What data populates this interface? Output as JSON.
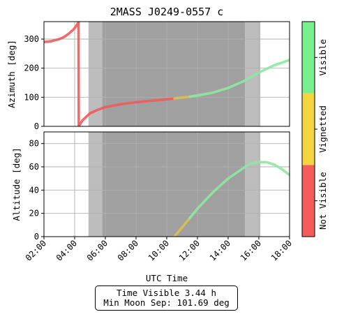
{
  "chart_data": {
    "type": "line",
    "title": "2MASS J0249-0557 c",
    "xlabel": "UTC Time",
    "x_ticks": [
      "02:00",
      "04:00",
      "06:00",
      "08:00",
      "10:00",
      "12:00",
      "14:00",
      "16:00",
      "18:00"
    ],
    "xlim_hours": [
      2,
      18
    ],
    "twilight_bands_hours": {
      "light": [
        [
          4.9,
          5.8
        ],
        [
          15.1,
          16.1
        ]
      ],
      "dark": [
        [
          5.8,
          15.1
        ]
      ]
    },
    "panels": [
      {
        "name": "azimuth",
        "ylabel": "Azimuth [deg]",
        "ylim": [
          0,
          360
        ],
        "y_ticks": [
          0,
          100,
          200,
          300
        ],
        "series": [
          {
            "status": "Not Visible",
            "color": "#ef5b5b",
            "x": [
              2.0,
              2.5,
              3.0,
              3.3,
              3.6,
              3.9,
              4.1,
              4.25
            ],
            "y": [
              290,
              293,
              300,
              307,
              318,
              332,
              345,
              358
            ]
          },
          {
            "status": "Not Visible",
            "color": "#ef5b5b",
            "x": [
              4.25,
              4.27
            ],
            "y": [
              358,
              0
            ]
          },
          {
            "status": "Not Visible",
            "color": "#ef5b5b",
            "x": [
              4.27,
              4.5,
              5.0,
              5.5,
              6.0,
              7.0,
              8.0,
              9.0,
              10.0,
              10.5
            ],
            "y": [
              0,
              20,
              45,
              57,
              66,
              76,
              83,
              88,
              93,
              96
            ]
          },
          {
            "status": "Vignetted",
            "color": "#d8c24a",
            "x": [
              10.5,
              11.0,
              11.5
            ],
            "y": [
              96,
              99,
              102
            ]
          },
          {
            "status": "Visible",
            "color": "#8ee8a0",
            "x": [
              11.5,
              12.0,
              13.0,
              14.0,
              15.0,
              16.0,
              17.0,
              18.0
            ],
            "y": [
              102,
              106,
              116,
              132,
              155,
              185,
              210,
              228
            ]
          }
        ]
      },
      {
        "name": "altitude",
        "ylabel": "Altitude [deg]",
        "ylim": [
          0,
          90
        ],
        "y_ticks": [
          0,
          20,
          40,
          60,
          80
        ],
        "series": [
          {
            "status": "Vignetted",
            "color": "#d8c24a",
            "x": [
              10.5,
              11.0,
              11.5
            ],
            "y": [
              0,
              8,
              16
            ]
          },
          {
            "status": "Visible",
            "color": "#8ee8a0",
            "x": [
              11.5,
              12.0,
              13.0,
              14.0,
              15.0,
              15.5,
              16.0,
              16.5,
              17.0,
              17.5,
              18.0
            ],
            "y": [
              16,
              24,
              38,
              50,
              59,
              63,
              64,
              64,
              62,
              58,
              53
            ]
          }
        ]
      }
    ],
    "colorbar": {
      "labels": [
        "Not Visible",
        "Vignetted",
        "Visible"
      ],
      "colors": [
        "#f45b5b",
        "#f5d53f",
        "#78f08e"
      ]
    },
    "info": {
      "time_visible": "Time Visible 3.44 h",
      "min_moon_sep": "Min Moon Sep: 101.69 deg"
    }
  }
}
